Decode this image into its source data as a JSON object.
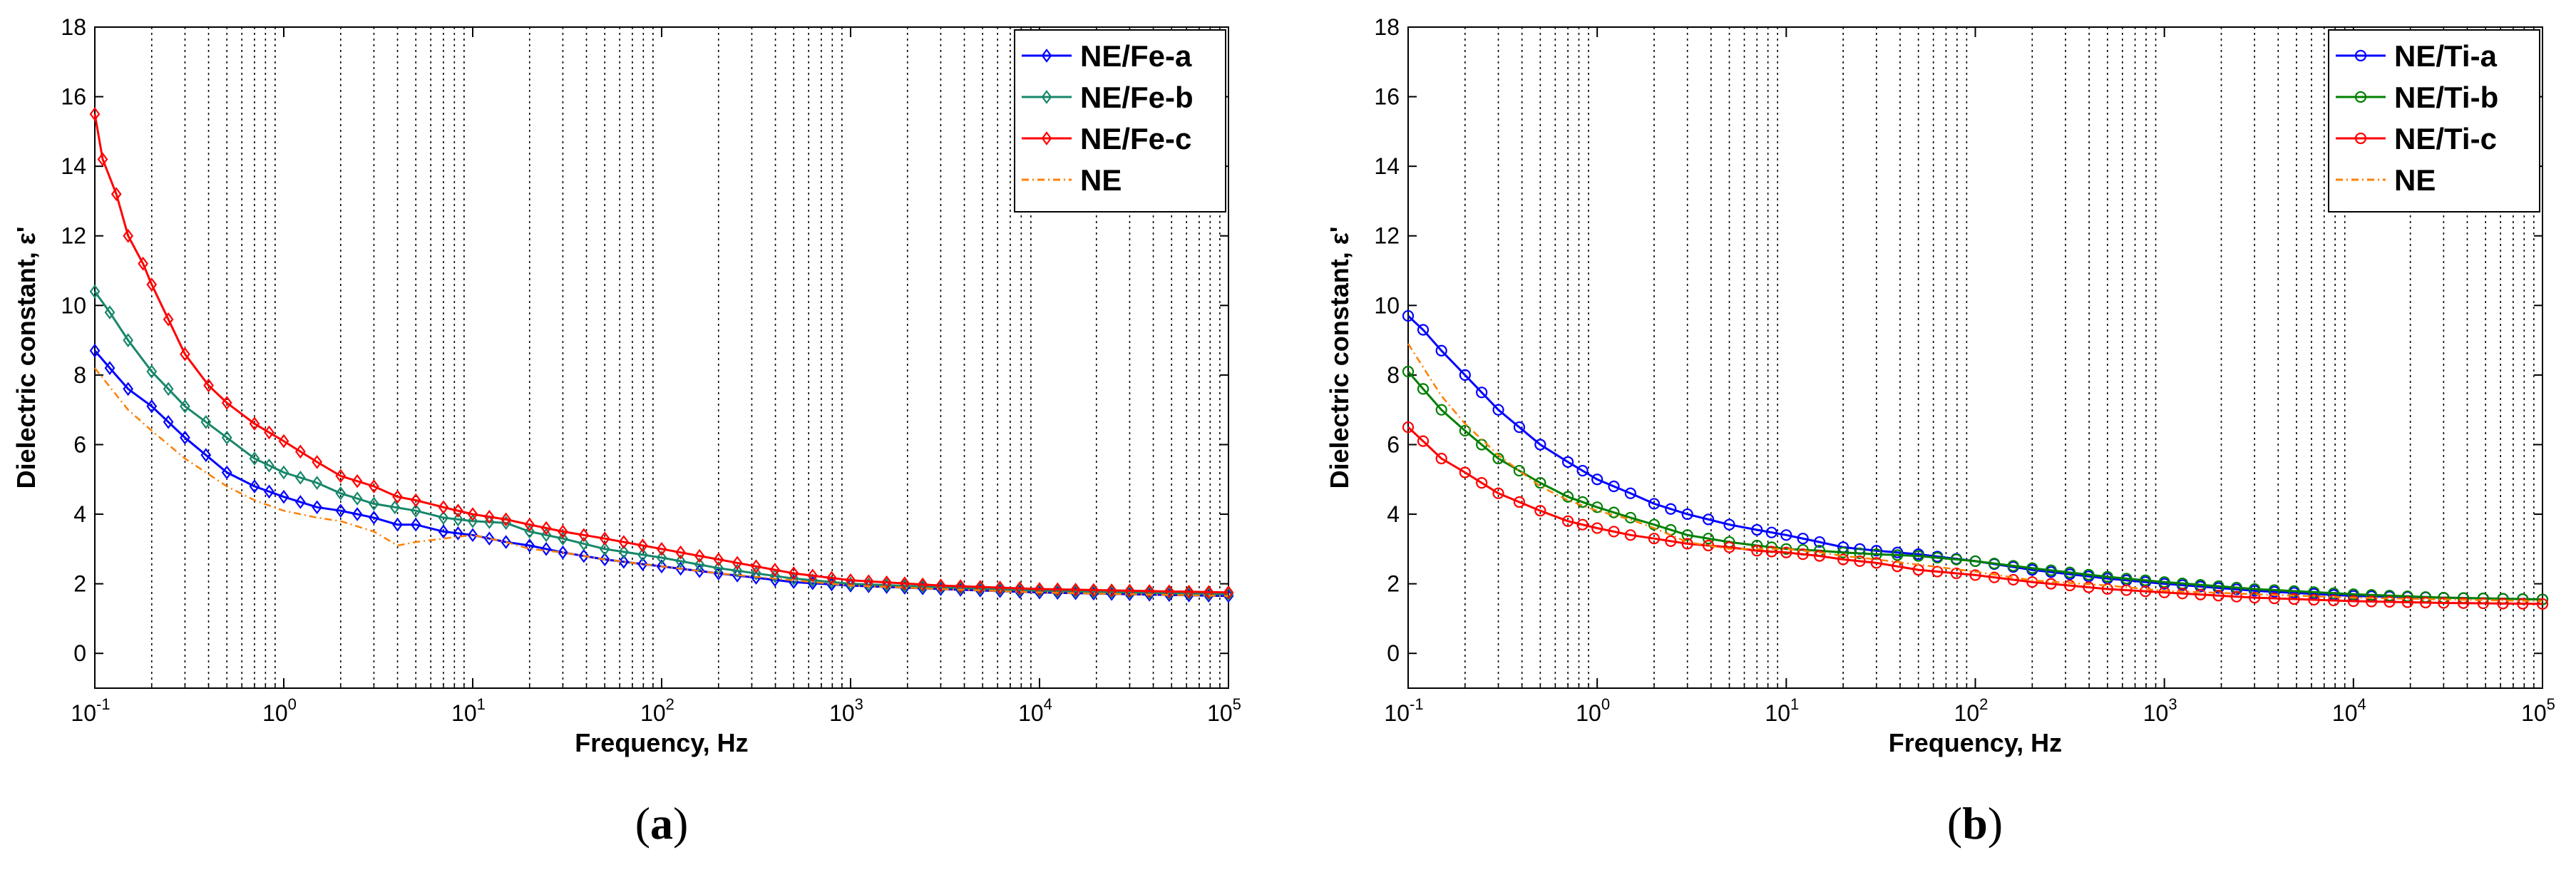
{
  "chart_data": [
    {
      "type": "line",
      "panel_label": "a",
      "xlabel": "Frequency, Hz",
      "ylabel": "Dielectric constant, ε'",
      "xscale": "log",
      "xlim": [
        0.1,
        100000
      ],
      "ylim": [
        -1,
        18
      ],
      "yticks": [
        0,
        2,
        4,
        6,
        8,
        10,
        12,
        14,
        16,
        18
      ],
      "xticks": [
        {
          "base": "10",
          "exp": "-1"
        },
        {
          "base": "10",
          "exp": "0"
        },
        {
          "base": "10",
          "exp": "1"
        },
        {
          "base": "10",
          "exp": "2"
        },
        {
          "base": "10",
          "exp": "3"
        },
        {
          "base": "10",
          "exp": "4"
        },
        {
          "base": "10",
          "exp": "5"
        }
      ],
      "grid": "vertical dotted at log minor ticks",
      "legend_position": "top-right",
      "series": [
        {
          "name": "NE/Fe-a",
          "color": "#0000ff",
          "marker": "diamond",
          "points": [
            [
              0.1,
              8.7
            ],
            [
              0.12,
              8.2
            ],
            [
              0.15,
              7.6
            ],
            [
              0.2,
              7.1
            ],
            [
              0.3,
              6.2
            ],
            [
              0.5,
              5.2
            ],
            [
              0.7,
              4.8
            ],
            [
              1,
              4.5
            ],
            [
              1.5,
              4.2
            ],
            [
              2,
              4.1
            ],
            [
              3,
              3.9
            ],
            [
              4,
              3.7
            ],
            [
              5,
              3.7
            ],
            [
              7,
              3.5
            ],
            [
              10,
              3.4
            ],
            [
              15,
              3.2
            ],
            [
              20,
              3.1
            ],
            [
              30,
              2.9
            ],
            [
              50,
              2.7
            ],
            [
              100,
              2.5
            ],
            [
              200,
              2.3
            ],
            [
              500,
              2.05
            ],
            [
              1000,
              1.95
            ],
            [
              3000,
              1.85
            ],
            [
              10000,
              1.75
            ],
            [
              30000,
              1.7
            ],
            [
              100000,
              1.65
            ]
          ]
        },
        {
          "name": "NE/Fe-b",
          "color": "#17876a",
          "marker": "diamond",
          "points": [
            [
              0.1,
              10.4
            ],
            [
              0.12,
              9.8
            ],
            [
              0.15,
              9.0
            ],
            [
              0.2,
              8.1
            ],
            [
              0.3,
              7.1
            ],
            [
              0.5,
              6.2
            ],
            [
              0.7,
              5.6
            ],
            [
              1,
              5.2
            ],
            [
              1.5,
              4.9
            ],
            [
              2,
              4.6
            ],
            [
              3,
              4.3
            ],
            [
              5,
              4.1
            ],
            [
              7,
              3.9
            ],
            [
              10,
              3.8
            ],
            [
              15,
              3.75
            ],
            [
              20,
              3.5
            ],
            [
              30,
              3.3
            ],
            [
              50,
              3.0
            ],
            [
              100,
              2.75
            ],
            [
              200,
              2.45
            ],
            [
              500,
              2.15
            ],
            [
              1000,
              2.0
            ],
            [
              3000,
              1.9
            ],
            [
              10000,
              1.8
            ],
            [
              30000,
              1.75
            ],
            [
              100000,
              1.7
            ]
          ]
        },
        {
          "name": "NE/Fe-c",
          "color": "#ff0000",
          "marker": "diamond",
          "points": [
            [
              0.1,
              15.5
            ],
            [
              0.11,
              14.2
            ],
            [
              0.13,
              13.2
            ],
            [
              0.15,
              12.0
            ],
            [
              0.18,
              11.2
            ],
            [
              0.2,
              10.6
            ],
            [
              0.3,
              8.6
            ],
            [
              0.4,
              7.7
            ],
            [
              0.5,
              7.2
            ],
            [
              0.7,
              6.6
            ],
            [
              1,
              6.1
            ],
            [
              1.5,
              5.5
            ],
            [
              2,
              5.1
            ],
            [
              3,
              4.8
            ],
            [
              4,
              4.5
            ],
            [
              5,
              4.4
            ],
            [
              7,
              4.2
            ],
            [
              10,
              4.0
            ],
            [
              15,
              3.85
            ],
            [
              20,
              3.7
            ],
            [
              30,
              3.5
            ],
            [
              50,
              3.3
            ],
            [
              100,
              3.0
            ],
            [
              200,
              2.7
            ],
            [
              500,
              2.3
            ],
            [
              1000,
              2.1
            ],
            [
              3000,
              1.95
            ],
            [
              10000,
              1.85
            ],
            [
              30000,
              1.8
            ],
            [
              100000,
              1.75
            ]
          ]
        },
        {
          "name": "NE",
          "color": "#ff8000",
          "marker": "none",
          "dash": "dash-dot",
          "points": [
            [
              0.1,
              8.2
            ],
            [
              0.15,
              7.0
            ],
            [
              0.2,
              6.4
            ],
            [
              0.3,
              5.6
            ],
            [
              0.5,
              4.8
            ],
            [
              0.7,
              4.4
            ],
            [
              1,
              4.1
            ],
            [
              1.5,
              3.9
            ],
            [
              2,
              3.8
            ],
            [
              3,
              3.5
            ],
            [
              4,
              3.1
            ],
            [
              5,
              3.2
            ],
            [
              7,
              3.3
            ],
            [
              10,
              3.4
            ],
            [
              15,
              3.2
            ],
            [
              20,
              3.0
            ],
            [
              30,
              2.9
            ],
            [
              50,
              2.7
            ],
            [
              100,
              2.5
            ],
            [
              200,
              2.3
            ],
            [
              500,
              2.1
            ],
            [
              1000,
              1.95
            ],
            [
              3000,
              1.85
            ],
            [
              10000,
              1.75
            ],
            [
              30000,
              1.7
            ],
            [
              100000,
              1.65
            ]
          ]
        }
      ]
    },
    {
      "type": "line",
      "panel_label": "b",
      "xlabel": "Frequency, Hz",
      "ylabel": "Dielectric constant, ε'",
      "xscale": "log",
      "xlim": [
        0.1,
        100000
      ],
      "ylim": [
        -1,
        18
      ],
      "yticks": [
        0,
        2,
        4,
        6,
        8,
        10,
        12,
        14,
        16,
        18
      ],
      "xticks": [
        {
          "base": "10",
          "exp": "-1"
        },
        {
          "base": "10",
          "exp": "0"
        },
        {
          "base": "10",
          "exp": "1"
        },
        {
          "base": "10",
          "exp": "2"
        },
        {
          "base": "10",
          "exp": "3"
        },
        {
          "base": "10",
          "exp": "4"
        },
        {
          "base": "10",
          "exp": "5"
        }
      ],
      "grid": "vertical dotted at log minor ticks",
      "legend_position": "top-right",
      "series": [
        {
          "name": "NE/Ti-a",
          "color": "#0000ff",
          "marker": "circle",
          "points": [
            [
              0.1,
              9.7
            ],
            [
              0.12,
              9.3
            ],
            [
              0.15,
              8.7
            ],
            [
              0.2,
              8.0
            ],
            [
              0.3,
              7.0
            ],
            [
              0.5,
              6.0
            ],
            [
              0.7,
              5.5
            ],
            [
              1,
              5.0
            ],
            [
              1.5,
              4.6
            ],
            [
              2,
              4.3
            ],
            [
              3,
              4.0
            ],
            [
              5,
              3.7
            ],
            [
              7,
              3.55
            ],
            [
              10,
              3.4
            ],
            [
              15,
              3.2
            ],
            [
              20,
              3.05
            ],
            [
              30,
              2.95
            ],
            [
              50,
              2.85
            ],
            [
              100,
              2.65
            ],
            [
              200,
              2.4
            ],
            [
              500,
              2.15
            ],
            [
              1000,
              2.0
            ],
            [
              3000,
              1.8
            ],
            [
              10000,
              1.65
            ],
            [
              30000,
              1.6
            ],
            [
              100000,
              1.55
            ]
          ]
        },
        {
          "name": "NE/Ti-b",
          "color": "#008000",
          "marker": "circle",
          "points": [
            [
              0.1,
              8.1
            ],
            [
              0.12,
              7.6
            ],
            [
              0.15,
              7.0
            ],
            [
              0.2,
              6.4
            ],
            [
              0.3,
              5.6
            ],
            [
              0.5,
              4.9
            ],
            [
              0.7,
              4.5
            ],
            [
              1,
              4.2
            ],
            [
              1.5,
              3.9
            ],
            [
              2,
              3.7
            ],
            [
              3,
              3.4
            ],
            [
              5,
              3.2
            ],
            [
              7,
              3.1
            ],
            [
              10,
              3.0
            ],
            [
              15,
              2.95
            ],
            [
              20,
              2.9
            ],
            [
              30,
              2.85
            ],
            [
              50,
              2.8
            ],
            [
              100,
              2.65
            ],
            [
              200,
              2.45
            ],
            [
              500,
              2.2
            ],
            [
              1000,
              2.05
            ],
            [
              3000,
              1.85
            ],
            [
              10000,
              1.7
            ],
            [
              30000,
              1.6
            ],
            [
              100000,
              1.55
            ]
          ]
        },
        {
          "name": "NE/Ti-c",
          "color": "#ff0000",
          "marker": "circle",
          "points": [
            [
              0.1,
              6.5
            ],
            [
              0.12,
              6.1
            ],
            [
              0.15,
              5.6
            ],
            [
              0.2,
              5.2
            ],
            [
              0.3,
              4.6
            ],
            [
              0.5,
              4.1
            ],
            [
              0.7,
              3.8
            ],
            [
              1,
              3.6
            ],
            [
              1.5,
              3.4
            ],
            [
              2,
              3.3
            ],
            [
              3,
              3.15
            ],
            [
              5,
              3.05
            ],
            [
              7,
              2.95
            ],
            [
              10,
              2.9
            ],
            [
              15,
              2.8
            ],
            [
              20,
              2.7
            ],
            [
              30,
              2.6
            ],
            [
              50,
              2.4
            ],
            [
              100,
              2.25
            ],
            [
              200,
              2.05
            ],
            [
              500,
              1.85
            ],
            [
              1000,
              1.75
            ],
            [
              3000,
              1.6
            ],
            [
              10000,
              1.5
            ],
            [
              30000,
              1.45
            ],
            [
              100000,
              1.42
            ]
          ]
        },
        {
          "name": "NE",
          "color": "#ff8000",
          "marker": "none",
          "dash": "dash-dot",
          "points": [
            [
              0.1,
              8.9
            ],
            [
              0.15,
              7.4
            ],
            [
              0.2,
              6.6
            ],
            [
              0.3,
              5.7
            ],
            [
              0.5,
              4.8
            ],
            [
              0.7,
              4.4
            ],
            [
              1,
              4.1
            ],
            [
              1.5,
              3.85
            ],
            [
              2,
              3.6
            ],
            [
              3,
              3.2
            ],
            [
              5,
              3.0
            ],
            [
              7,
              3.0
            ],
            [
              10,
              3.0
            ],
            [
              15,
              2.9
            ],
            [
              20,
              2.8
            ],
            [
              30,
              2.7
            ],
            [
              50,
              2.55
            ],
            [
              100,
              2.35
            ],
            [
              200,
              2.1
            ],
            [
              500,
              1.95
            ],
            [
              1000,
              1.8
            ],
            [
              3000,
              1.7
            ],
            [
              10000,
              1.6
            ],
            [
              30000,
              1.55
            ],
            [
              100000,
              1.5
            ]
          ]
        }
      ]
    }
  ]
}
